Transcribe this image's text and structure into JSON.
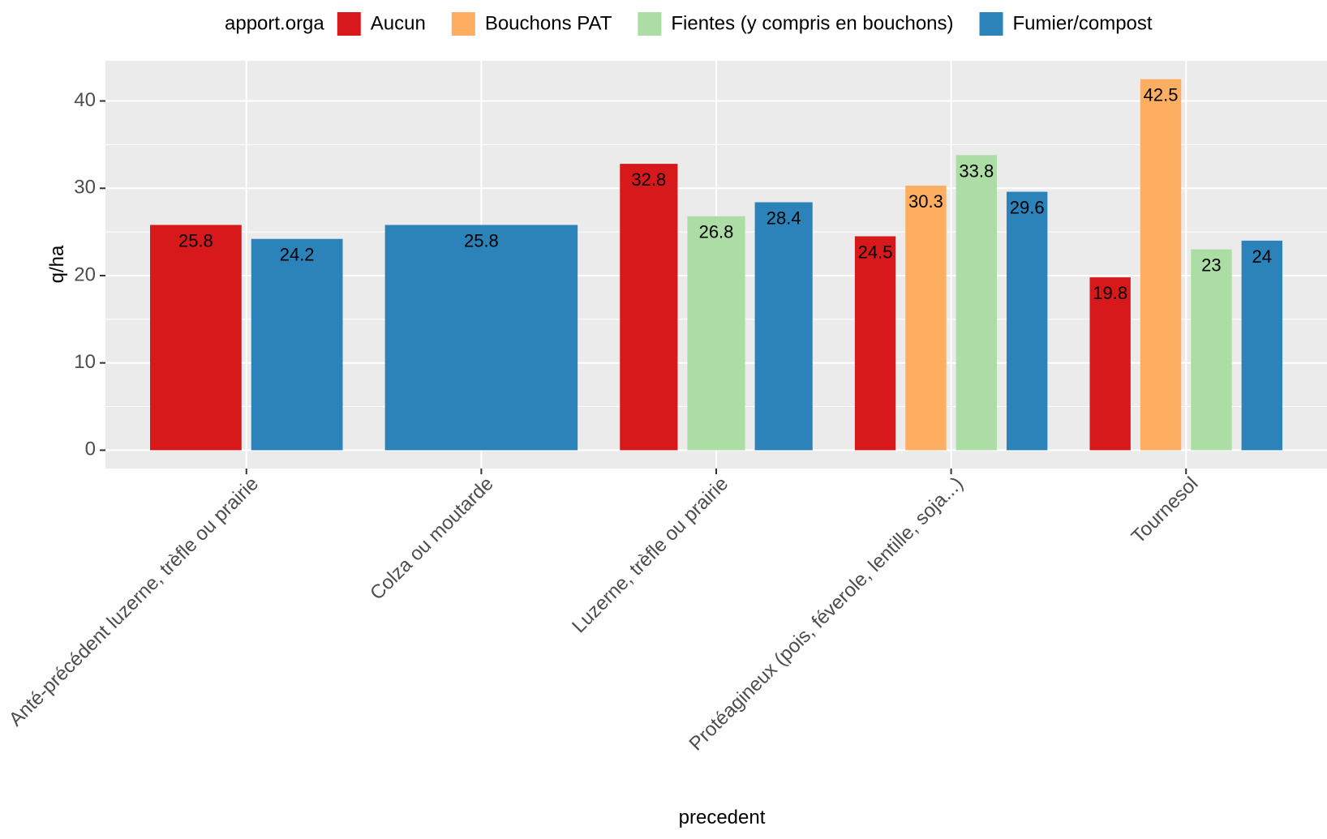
{
  "chart_data": {
    "type": "bar",
    "xlabel": "precedent",
    "ylabel": "q/ha",
    "ylim": [
      -2.1,
      44.6
    ],
    "yticks": [
      0,
      10,
      20,
      30,
      40
    ],
    "grid": true,
    "legend": {
      "title": "apport.orga",
      "position": "top",
      "items": [
        {
          "name": "Aucun",
          "color": "#d7191c"
        },
        {
          "name": "Bouchons PAT",
          "color": "#fdae61"
        },
        {
          "name": "Fientes (y compris en bouchons)",
          "color": "#abdda4"
        },
        {
          "name": "Fumier/compost",
          "color": "#2b83ba"
        }
      ]
    },
    "categories": [
      "Anté-précédent luzerne, trèfle ou prairie",
      "Colza ou moutarde",
      "Luzerne, trèfle ou prairie",
      "Protéagineux (pois, féverole, lentille, soja...)",
      "Tournesol"
    ],
    "groups": [
      {
        "category": "Anté-précédent luzerne, trèfle ou prairie",
        "bars": [
          {
            "series": "Aucun",
            "value": 25.8,
            "label": "25.8"
          },
          {
            "series": "Fumier/compost",
            "value": 24.2,
            "label": "24.2"
          }
        ]
      },
      {
        "category": "Colza ou moutarde",
        "bars": [
          {
            "series": "Fumier/compost",
            "value": 25.8,
            "label": "25.8"
          }
        ]
      },
      {
        "category": "Luzerne, trèfle ou prairie",
        "bars": [
          {
            "series": "Aucun",
            "value": 32.8,
            "label": "32.8"
          },
          {
            "series": "Fientes (y compris en bouchons)",
            "value": 26.8,
            "label": "26.8"
          },
          {
            "series": "Fumier/compost",
            "value": 28.4,
            "label": "28.4"
          }
        ]
      },
      {
        "category": "Protéagineux (pois, féverole, lentille, soja...)",
        "bars": [
          {
            "series": "Aucun",
            "value": 24.5,
            "label": "24.5"
          },
          {
            "series": "Bouchons PAT",
            "value": 30.3,
            "label": "30.3"
          },
          {
            "series": "Fientes (y compris en bouchons)",
            "value": 33.8,
            "label": "33.8"
          },
          {
            "series": "Fumier/compost",
            "value": 29.6,
            "label": "29.6"
          }
        ]
      },
      {
        "category": "Tournesol",
        "bars": [
          {
            "series": "Aucun",
            "value": 19.8,
            "label": "19.8"
          },
          {
            "series": "Bouchons PAT",
            "value": 42.5,
            "label": "42.5"
          },
          {
            "series": "Fientes (y compris en bouchons)",
            "value": 23,
            "label": "23"
          },
          {
            "series": "Fumier/compost",
            "value": 24,
            "label": "24"
          }
        ]
      }
    ]
  }
}
